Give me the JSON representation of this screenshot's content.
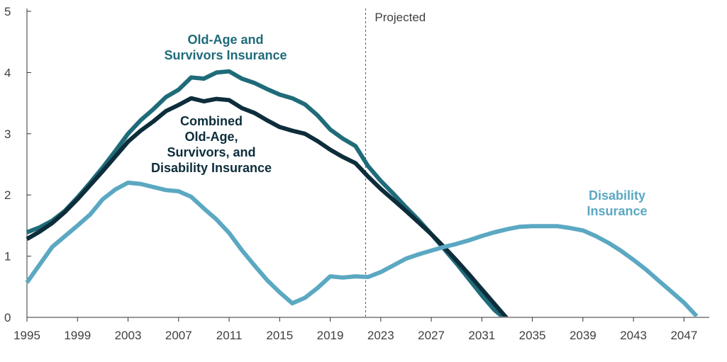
{
  "chart_data": {
    "type": "line",
    "xlim": [
      1995,
      2049
    ],
    "ylim": [
      0,
      5
    ],
    "yticks": [
      0,
      1,
      2,
      3,
      4,
      5
    ],
    "yticks_labels": [
      "0",
      "1",
      "2",
      "3",
      "4",
      "5"
    ],
    "xticks": [
      1995,
      1999,
      2003,
      2007,
      2011,
      2015,
      2019,
      2023,
      2027,
      2031,
      2035,
      2039,
      2043,
      2047
    ],
    "xticks_labels": [
      "1995",
      "1999",
      "2003",
      "2007",
      "2011",
      "2015",
      "2019",
      "2023",
      "2027",
      "2031",
      "2035",
      "2039",
      "2043",
      "2047"
    ],
    "grid": false,
    "projection": {
      "x": 2021.8,
      "label": "Projected"
    },
    "series": [
      {
        "name": "Old-Age and Survivors Insurance",
        "label_lines": [
          "Old-Age and",
          "Survivors Insurance"
        ],
        "color": "#1f6b7a",
        "points": [
          [
            1995,
            1.39
          ],
          [
            1996,
            1.47
          ],
          [
            1997,
            1.58
          ],
          [
            1998,
            1.74
          ],
          [
            1999,
            1.96
          ],
          [
            2000,
            2.2
          ],
          [
            2001,
            2.45
          ],
          [
            2002,
            2.72
          ],
          [
            2003,
            3.0
          ],
          [
            2004,
            3.22
          ],
          [
            2005,
            3.4
          ],
          [
            2006,
            3.6
          ],
          [
            2007,
            3.72
          ],
          [
            2008,
            3.92
          ],
          [
            2009,
            3.9
          ],
          [
            2010,
            4.0
          ],
          [
            2011,
            4.02
          ],
          [
            2012,
            3.9
          ],
          [
            2013,
            3.83
          ],
          [
            2014,
            3.73
          ],
          [
            2015,
            3.64
          ],
          [
            2016,
            3.58
          ],
          [
            2017,
            3.48
          ],
          [
            2018,
            3.3
          ],
          [
            2019,
            3.07
          ],
          [
            2020,
            2.92
          ],
          [
            2021,
            2.8
          ],
          [
            2022,
            2.47
          ],
          [
            2023,
            2.23
          ],
          [
            2024,
            2.02
          ],
          [
            2025,
            1.8
          ],
          [
            2026,
            1.59
          ],
          [
            2027,
            1.36
          ],
          [
            2028,
            1.12
          ],
          [
            2029,
            0.88
          ],
          [
            2030,
            0.62
          ],
          [
            2031,
            0.36
          ],
          [
            2032,
            0.12
          ],
          [
            2033,
            -0.05
          ]
        ]
      },
      {
        "name": "Combined Old-Age, Survivors, and Disability Insurance",
        "label_lines": [
          "Combined",
          "Old-Age,",
          "Survivors, and",
          "Disability Insurance"
        ],
        "color": "#0d2d3b",
        "points": [
          [
            1995,
            1.28
          ],
          [
            1996,
            1.4
          ],
          [
            1997,
            1.54
          ],
          [
            1998,
            1.72
          ],
          [
            1999,
            1.93
          ],
          [
            2000,
            2.16
          ],
          [
            2001,
            2.39
          ],
          [
            2002,
            2.63
          ],
          [
            2003,
            2.87
          ],
          [
            2004,
            3.05
          ],
          [
            2005,
            3.2
          ],
          [
            2006,
            3.37
          ],
          [
            2007,
            3.47
          ],
          [
            2008,
            3.58
          ],
          [
            2009,
            3.53
          ],
          [
            2010,
            3.57
          ],
          [
            2011,
            3.55
          ],
          [
            2012,
            3.42
          ],
          [
            2013,
            3.34
          ],
          [
            2014,
            3.22
          ],
          [
            2015,
            3.11
          ],
          [
            2016,
            3.05
          ],
          [
            2017,
            3.0
          ],
          [
            2018,
            2.88
          ],
          [
            2019,
            2.74
          ],
          [
            2020,
            2.62
          ],
          [
            2021,
            2.52
          ],
          [
            2022,
            2.3
          ],
          [
            2023,
            2.1
          ],
          [
            2024,
            1.92
          ],
          [
            2025,
            1.74
          ],
          [
            2026,
            1.55
          ],
          [
            2027,
            1.36
          ],
          [
            2028,
            1.15
          ],
          [
            2029,
            0.93
          ],
          [
            2030,
            0.7
          ],
          [
            2031,
            0.46
          ],
          [
            2032,
            0.22
          ],
          [
            2033,
            -0.02
          ]
        ]
      },
      {
        "name": "Disability Insurance",
        "label_lines": [
          "Disability",
          "Insurance"
        ],
        "color": "#5ba8c2",
        "points": [
          [
            1995,
            0.57
          ],
          [
            1997,
            1.15
          ],
          [
            1999,
            1.5
          ],
          [
            2000,
            1.68
          ],
          [
            2001,
            1.93
          ],
          [
            2002,
            2.09
          ],
          [
            2003,
            2.2
          ],
          [
            2004,
            2.18
          ],
          [
            2005,
            2.13
          ],
          [
            2006,
            2.08
          ],
          [
            2007,
            2.06
          ],
          [
            2008,
            1.97
          ],
          [
            2009,
            1.78
          ],
          [
            2010,
            1.6
          ],
          [
            2011,
            1.38
          ],
          [
            2012,
            1.1
          ],
          [
            2013,
            0.85
          ],
          [
            2014,
            0.61
          ],
          [
            2015,
            0.41
          ],
          [
            2016,
            0.23
          ],
          [
            2017,
            0.32
          ],
          [
            2018,
            0.48
          ],
          [
            2019,
            0.67
          ],
          [
            2020,
            0.65
          ],
          [
            2021,
            0.67
          ],
          [
            2022,
            0.66
          ],
          [
            2023,
            0.74
          ],
          [
            2024,
            0.85
          ],
          [
            2025,
            0.96
          ],
          [
            2026,
            1.03
          ],
          [
            2027,
            1.09
          ],
          [
            2028,
            1.15
          ],
          [
            2029,
            1.2
          ],
          [
            2030,
            1.26
          ],
          [
            2031,
            1.33
          ],
          [
            2032,
            1.39
          ],
          [
            2033,
            1.44
          ],
          [
            2034,
            1.48
          ],
          [
            2035,
            1.49
          ],
          [
            2036,
            1.49
          ],
          [
            2037,
            1.49
          ],
          [
            2038,
            1.46
          ],
          [
            2039,
            1.42
          ],
          [
            2040,
            1.33
          ],
          [
            2041,
            1.22
          ],
          [
            2042,
            1.09
          ],
          [
            2043,
            0.94
          ],
          [
            2044,
            0.78
          ],
          [
            2045,
            0.6
          ],
          [
            2046,
            0.42
          ],
          [
            2047,
            0.24
          ],
          [
            2048,
            0.02
          ]
        ]
      }
    ]
  }
}
